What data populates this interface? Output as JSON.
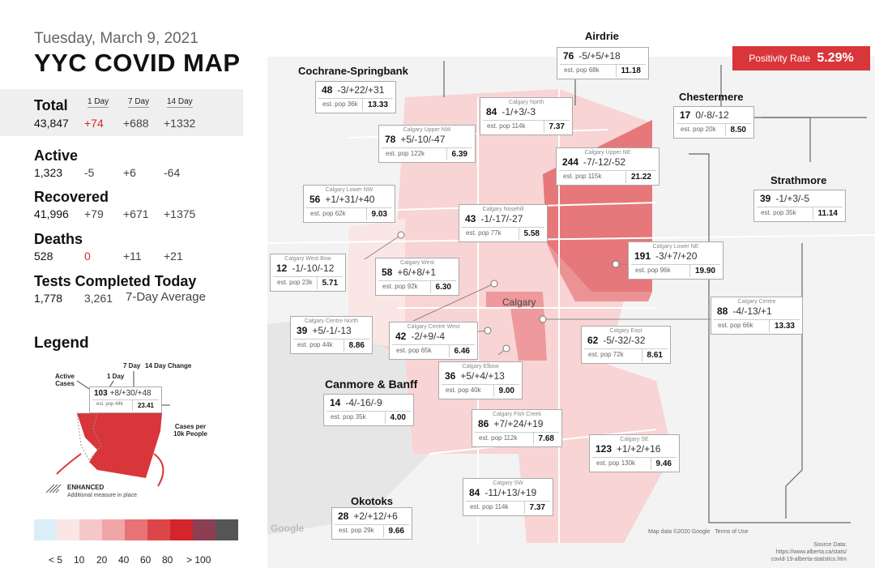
{
  "header": {
    "date": "Tuesday, March 9, 2021",
    "title": "YYC COVID MAP"
  },
  "columns": {
    "c1": "1 Day",
    "c7": "7 Day",
    "c14": "14 Day"
  },
  "stats": {
    "total": {
      "label": "Total",
      "value": "43,847",
      "d1": "+74",
      "d7": "+688",
      "d14": "+1332"
    },
    "active": {
      "label": "Active",
      "value": "1,323",
      "d1": "-5",
      "d7": "+6",
      "d14": "-64"
    },
    "recovered": {
      "label": "Recovered",
      "value": "41,996",
      "d1": "+79",
      "d7": "+671",
      "d14": "+1375"
    },
    "deaths": {
      "label": "Deaths",
      "value": "528",
      "d1": "0",
      "d7": "+11",
      "d14": "+21"
    },
    "tests": {
      "label": "Tests Completed Today",
      "value": "1,778",
      "avg": "3,261",
      "avg_label": "7-Day Average"
    }
  },
  "legend": {
    "title": "Legend",
    "active_cases": "Active Cases",
    "one_day": "1 Day",
    "seven_day": "7 Day",
    "fourteen_day": "14 Day Change",
    "example_active": "103",
    "example_changes": "+8/+30/+48",
    "example_pop": "est. pop 44k",
    "example_rate": "23.41",
    "cases_per": "Cases per 10k People",
    "enhanced": "ENHANCED",
    "enhanced_sub": "Additional measure in place",
    "scale_colors": [
      "#d9eef7",
      "#fbe6e6",
      "#f6c7c8",
      "#f0a5a7",
      "#e77376",
      "#dd4648",
      "#d3262b",
      "#8c3e52",
      "#555555"
    ],
    "scale_labels": [
      "< 5",
      "10",
      "20",
      "40",
      "60",
      "80",
      "> 100"
    ]
  },
  "positivity": {
    "label": "Positivity Rate",
    "value": "5.29%"
  },
  "places": {
    "airdrie": "Airdrie",
    "cochrane": "Cochrane-Springbank",
    "chestermere": "Chestermere",
    "strathmore": "Strathmore",
    "canmore": "Canmore & Banff",
    "okotoks": "Okotoks",
    "calgary": "Calgary"
  },
  "cards": [
    {
      "name": "",
      "active": "76",
      "chg": "-5/+5/+18",
      "pop": "est. pop 68k",
      "rate": "11.18"
    },
    {
      "name": "",
      "active": "48",
      "chg": "-3/+22/+31",
      "pop": "est. pop 36k",
      "rate": "13.33"
    },
    {
      "name": "Calgary North",
      "active": "84",
      "chg": "-1/+3/-3",
      "pop": "est. pop 114k",
      "rate": "7.37"
    },
    {
      "name": "",
      "active": "17",
      "chg": "0/-8/-12",
      "pop": "est. pop 20k",
      "rate": "8.50"
    },
    {
      "name": "Calgary Upper NW",
      "active": "78",
      "chg": "+5/-10/-47",
      "pop": "est. pop 122k",
      "rate": "6.39"
    },
    {
      "name": "Calgary Upper NE",
      "active": "244",
      "chg": "-7/-12/-52",
      "pop": "est. pop 115k",
      "rate": "21.22"
    },
    {
      "name": "Calgary Lower NW",
      "active": "56",
      "chg": "+1/+31/+40",
      "pop": "est. pop 62k",
      "rate": "9.03"
    },
    {
      "name": "",
      "active": "39",
      "chg": "-1/+3/-5",
      "pop": "est. pop 35k",
      "rate": "11.14"
    },
    {
      "name": "Calgary Nosehill",
      "active": "43",
      "chg": "-1/-17/-27",
      "pop": "est. pop 77k",
      "rate": "5.58"
    },
    {
      "name": "Calgary Lower NE",
      "active": "191",
      "chg": "-3/+7/+20",
      "pop": "est. pop 96k",
      "rate": "19.90"
    },
    {
      "name": "Calgary West Bow",
      "active": "12",
      "chg": "-1/-10/-12",
      "pop": "est. pop 23k",
      "rate": "5.71"
    },
    {
      "name": "Calgary West",
      "active": "58",
      "chg": "+6/+8/+1",
      "pop": "est. pop 92k",
      "rate": "6.30"
    },
    {
      "name": "Calgary Centre",
      "active": "88",
      "chg": "-4/-13/+1",
      "pop": "est. pop 66k",
      "rate": "13.33"
    },
    {
      "name": "Calgary Centre North",
      "active": "39",
      "chg": "+5/-1/-13",
      "pop": "est. pop 44k",
      "rate": "8.86"
    },
    {
      "name": "Calgary Centre West",
      "active": "42",
      "chg": "-2/+9/-4",
      "pop": "est. pop 65k",
      "rate": "6.46"
    },
    {
      "name": "Calgary East",
      "active": "62",
      "chg": "-5/-32/-32",
      "pop": "est. pop 72k",
      "rate": "8.61"
    },
    {
      "name": "Calgary Elbow",
      "active": "36",
      "chg": "+5/+4/+13",
      "pop": "est. pop 40k",
      "rate": "9.00"
    },
    {
      "name": "",
      "active": "14",
      "chg": "-4/-16/-9",
      "pop": "est. pop 35k",
      "rate": "4.00"
    },
    {
      "name": "Calgary Fish Creek",
      "active": "86",
      "chg": "+7/+24/+19",
      "pop": "est. pop 112k",
      "rate": "7.68"
    },
    {
      "name": "Calgary SE",
      "active": "123",
      "chg": "+1/+2/+16",
      "pop": "est. pop 130k",
      "rate": "9.46"
    },
    {
      "name": "Calgary SW",
      "active": "84",
      "chg": "-11/+13/+19",
      "pop": "est. pop 114k",
      "rate": "7.37"
    },
    {
      "name": "",
      "active": "28",
      "chg": "+2/+12/+6",
      "pop": "est. pop 29k",
      "rate": "9.66"
    }
  ],
  "map_labels": {
    "google": "Google",
    "mapdata": "Map data ©2020 Google",
    "terms": "Terms of Use",
    "source_title": "Source Data:",
    "source_url1": "https://www.alberta.ca/stats/",
    "source_url2": "covid-19-alberta-statistics.htm"
  }
}
